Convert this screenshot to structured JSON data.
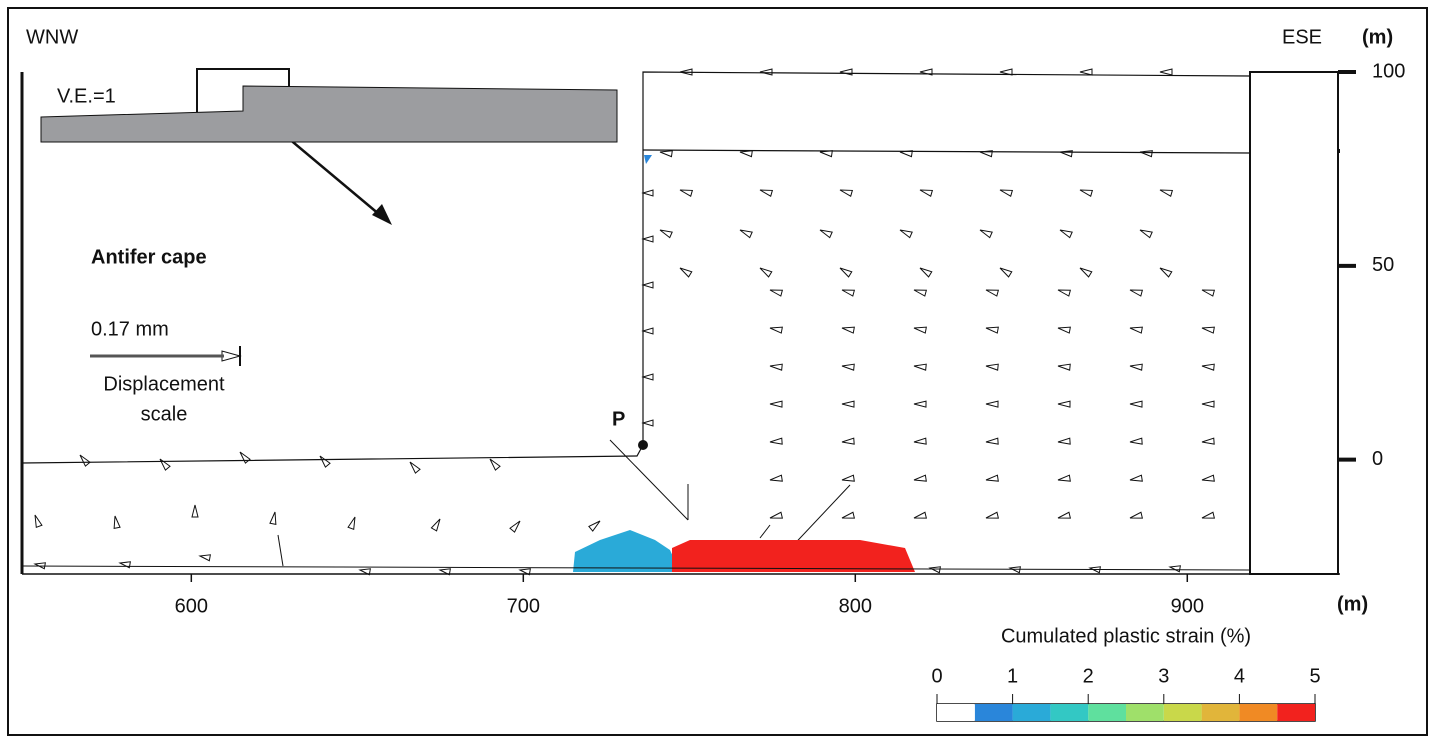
{
  "labels": {
    "wnw": "WNW",
    "ese": "ESE",
    "ve": "V.E.=1",
    "cape": "Antifer cape",
    "scale_value": "0.17 mm",
    "scale_caption": [
      "Displacement",
      "scale"
    ],
    "point": "P"
  },
  "x_axis": {
    "unit": "(m)",
    "lim": [
      549,
      946
    ],
    "ticks": [
      600,
      700,
      800,
      900
    ]
  },
  "y_axis": {
    "unit": "(m)",
    "lim": [
      -29.5,
      100
    ],
    "ticks": [
      0,
      50,
      100
    ]
  },
  "colorbar": {
    "title": "Cumulated plastic strain (%)",
    "lim": [
      0,
      5
    ],
    "ticks": [
      0,
      1,
      2,
      3,
      4,
      5
    ],
    "colors": [
      "#ffffff",
      "#2a86da",
      "#2aaad8",
      "#33c8c4",
      "#5fe09e",
      "#9fe06a",
      "#c9d84a",
      "#e1b53a",
      "#f08a24",
      "#f2221e"
    ]
  }
}
